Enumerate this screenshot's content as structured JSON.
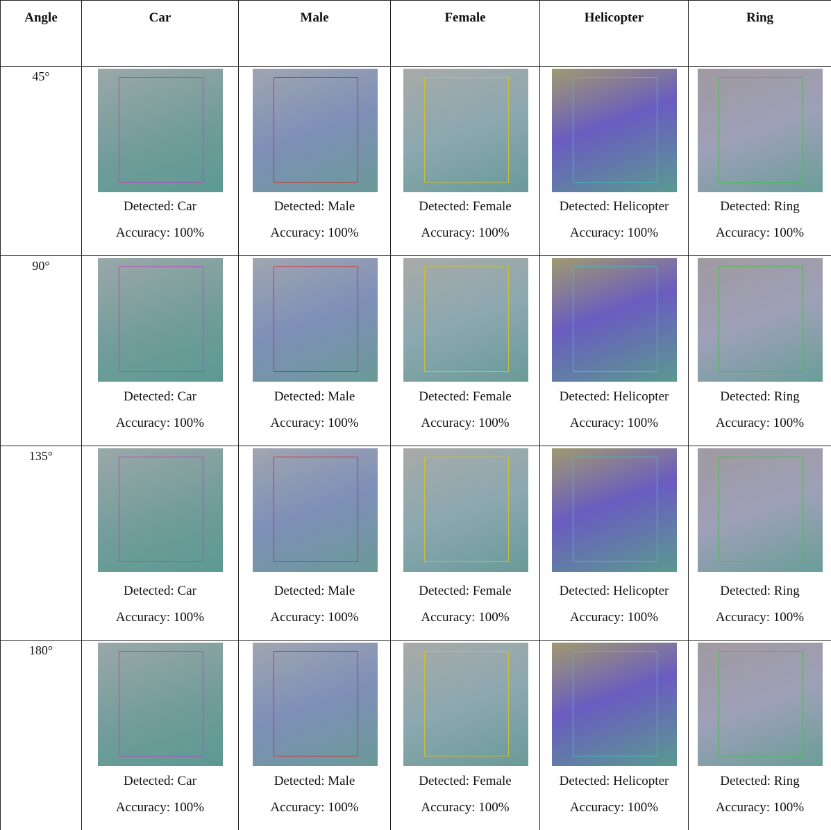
{
  "table": {
    "header": [
      "Angle",
      "Car",
      "Male",
      "Female",
      "Helicopter",
      "Ring"
    ],
    "rows": [
      {
        "angle": "45°",
        "cells": [
          {
            "detected": "Detected: Car",
            "accuracy": "Accuracy: 100%"
          },
          {
            "detected": "Detected: Male",
            "accuracy": "Accuracy: 100%"
          },
          {
            "detected": "Detected: Female",
            "accuracy": "Accuracy: 100%"
          },
          {
            "detected": "Detected: Helicopter",
            "accuracy": "Accuracy: 100%"
          },
          {
            "detected": "Detected: Ring",
            "accuracy": "Accuracy: 100%"
          }
        ]
      },
      {
        "angle": "90°",
        "cells": [
          {
            "detected": "Detected: Car",
            "accuracy": "Accuracy: 100%"
          },
          {
            "detected": "Detected: Male",
            "accuracy": "Accuracy: 100%"
          },
          {
            "detected": "Detected: Female",
            "accuracy": "Accuracy: 100%"
          },
          {
            "detected": "Detected: Helicopter",
            "accuracy": "Accuracy: 100%"
          },
          {
            "detected": "Detected: Ring",
            "accuracy": "Accuracy: 100%"
          }
        ]
      },
      {
        "angle": "135°",
        "cells": [
          {
            "detected": "Detected: Car",
            "accuracy": "Accuracy: 100%"
          },
          {
            "detected": "Detected: Male",
            "accuracy": "Accuracy: 100%"
          },
          {
            "detected": "Detected: Female",
            "accuracy": "Accuracy: 100%"
          },
          {
            "detected": "Detected: Helicopter",
            "accuracy": "Accuracy: 100%"
          },
          {
            "detected": "Detected: Ring",
            "accuracy": "Accuracy: 100%"
          }
        ]
      },
      {
        "angle": "180°",
        "cells": [
          {
            "detected": "Detected: Car",
            "accuracy": "Accuracy: 100%"
          },
          {
            "detected": "Detected: Male",
            "accuracy": "Accuracy: 100%"
          },
          {
            "detected": "Detected: Female",
            "accuracy": "Accuracy: 100%"
          },
          {
            "detected": "Detected: Helicopter",
            "accuracy": "Accuracy: 100%"
          },
          {
            "detected": "Detected: Ring",
            "accuracy": "Accuracy: 100%"
          }
        ]
      }
    ]
  }
}
